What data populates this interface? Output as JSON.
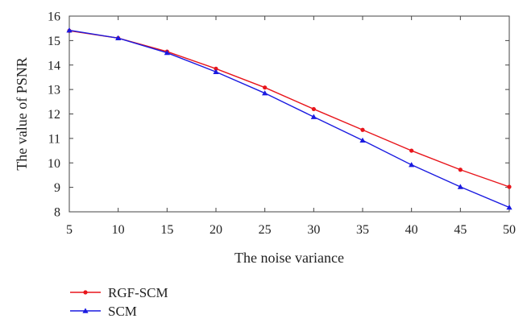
{
  "chart_data": {
    "type": "line",
    "title": "",
    "xlabel": "The noise variance",
    "ylabel": "The value of PSNR",
    "x": [
      5,
      10,
      15,
      20,
      25,
      30,
      35,
      40,
      45,
      50
    ],
    "xlim": [
      5,
      50
    ],
    "ylim": [
      8,
      16
    ],
    "xticks": [
      5,
      10,
      15,
      20,
      25,
      30,
      35,
      40,
      45,
      50
    ],
    "yticks": [
      8,
      9,
      10,
      11,
      12,
      13,
      14,
      15,
      16
    ],
    "grid": false,
    "legend_position": "bottom-left",
    "series": [
      {
        "name": "RGF-SCM",
        "color": "#e8151b",
        "marker": "dot",
        "values": [
          15.4,
          15.1,
          14.55,
          13.85,
          13.08,
          12.2,
          11.35,
          10.5,
          9.72,
          9.02
        ]
      },
      {
        "name": "SCM",
        "color": "#1a1ae0",
        "marker": "triangle",
        "values": [
          15.42,
          15.1,
          14.5,
          13.72,
          12.85,
          11.88,
          10.92,
          9.92,
          9.02,
          8.18
        ]
      }
    ]
  }
}
